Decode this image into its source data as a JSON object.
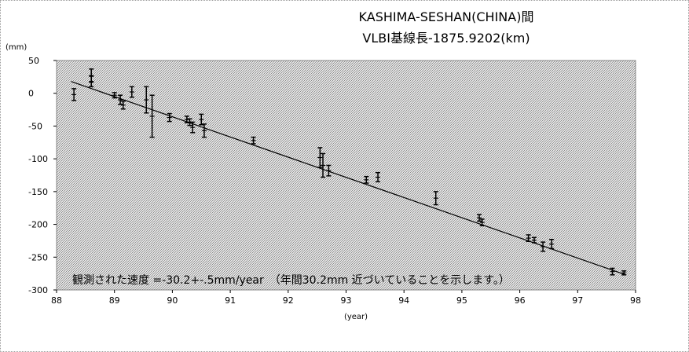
{
  "chart_data": {
    "type": "scatter",
    "title": "KASHIMA-SESHAN(CHINA)間",
    "subtitle": "VLBI基線長-1875.9202(km)",
    "ylabel": "(mm)",
    "xlabel": "(year)",
    "xlim": [
      88,
      98
    ],
    "ylim": [
      -300,
      50
    ],
    "x_ticks": [
      88,
      89,
      90,
      91,
      92,
      93,
      94,
      95,
      96,
      97,
      98
    ],
    "y_ticks": [
      50,
      0,
      -50,
      -100,
      -150,
      -200,
      -250,
      -300
    ],
    "grid": false,
    "annotation": "観測された速度 =-30.2+-.5mm/year　（年間30.2mm 近づいていることを示します。）",
    "fit_line": {
      "x": [
        88.25,
        97.8
      ],
      "y": [
        18,
        -276
      ]
    },
    "points": [
      {
        "x": 88.3,
        "y": -2,
        "err": 9
      },
      {
        "x": 88.6,
        "y": 27,
        "err": 10
      },
      {
        "x": 88.6,
        "y": 18,
        "err": 8
      },
      {
        "x": 89.0,
        "y": -3,
        "err": 4
      },
      {
        "x": 89.1,
        "y": -10,
        "err": 7
      },
      {
        "x": 89.15,
        "y": -18,
        "err": 6
      },
      {
        "x": 89.3,
        "y": 2,
        "err": 8
      },
      {
        "x": 89.55,
        "y": -10,
        "err": 20
      },
      {
        "x": 89.65,
        "y": -35,
        "err": 32
      },
      {
        "x": 89.95,
        "y": -37,
        "err": 6
      },
      {
        "x": 90.25,
        "y": -40,
        "err": 5
      },
      {
        "x": 90.3,
        "y": -44,
        "err": 5
      },
      {
        "x": 90.35,
        "y": -52,
        "err": 8
      },
      {
        "x": 90.5,
        "y": -40,
        "err": 8
      },
      {
        "x": 90.55,
        "y": -57,
        "err": 10
      },
      {
        "x": 91.4,
        "y": -72,
        "err": 5
      },
      {
        "x": 92.55,
        "y": -98,
        "err": 15
      },
      {
        "x": 92.6,
        "y": -110,
        "err": 18
      },
      {
        "x": 92.7,
        "y": -118,
        "err": 8
      },
      {
        "x": 93.35,
        "y": -132,
        "err": 5
      },
      {
        "x": 93.55,
        "y": -128,
        "err": 7
      },
      {
        "x": 94.55,
        "y": -160,
        "err": 10
      },
      {
        "x": 95.3,
        "y": -190,
        "err": 5
      },
      {
        "x": 95.35,
        "y": -197,
        "err": 5
      },
      {
        "x": 96.15,
        "y": -221,
        "err": 5
      },
      {
        "x": 96.25,
        "y": -224,
        "err": 4
      },
      {
        "x": 96.4,
        "y": -234,
        "err": 7
      },
      {
        "x": 96.55,
        "y": -230,
        "err": 7
      },
      {
        "x": 97.6,
        "y": -272,
        "err": 5
      },
      {
        "x": 97.8,
        "y": -274,
        "err": 3
      }
    ],
    "colors": {
      "plot_background": "#c8c8c8",
      "marks": "#000000",
      "frame": "#9a9a9a"
    }
  }
}
